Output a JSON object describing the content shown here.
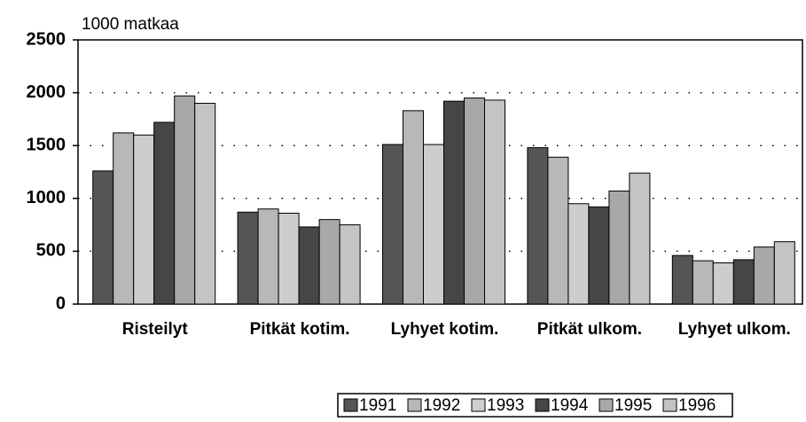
{
  "chart_data": {
    "type": "bar",
    "y_label": "1000 matkaa",
    "categories": [
      "Risteilyt",
      "Pitkät kotim.",
      "Lyhyet kotim.",
      "Pitkät ulkom.",
      "Lyhyet ulkom."
    ],
    "series": [
      {
        "name": "1991",
        "color": "#555555",
        "values": [
          1260,
          870,
          1510,
          1480,
          460
        ]
      },
      {
        "name": "1992",
        "color": "#b8b8b8",
        "values": [
          1620,
          900,
          1830,
          1390,
          410
        ]
      },
      {
        "name": "1993",
        "color": "#cdcdcd",
        "values": [
          1600,
          860,
          1510,
          950,
          390
        ]
      },
      {
        "name": "1994",
        "color": "#464646",
        "values": [
          1720,
          730,
          1920,
          920,
          420
        ]
      },
      {
        "name": "1995",
        "color": "#a8a8a8",
        "values": [
          1970,
          800,
          1950,
          1070,
          540
        ]
      },
      {
        "name": "1996",
        "color": "#c4c4c4",
        "values": [
          1900,
          750,
          1930,
          1240,
          590
        ]
      }
    ],
    "ylim": [
      0,
      2500
    ],
    "yticks": [
      0,
      500,
      1000,
      1500,
      2000,
      2500
    ],
    "grid": true
  }
}
